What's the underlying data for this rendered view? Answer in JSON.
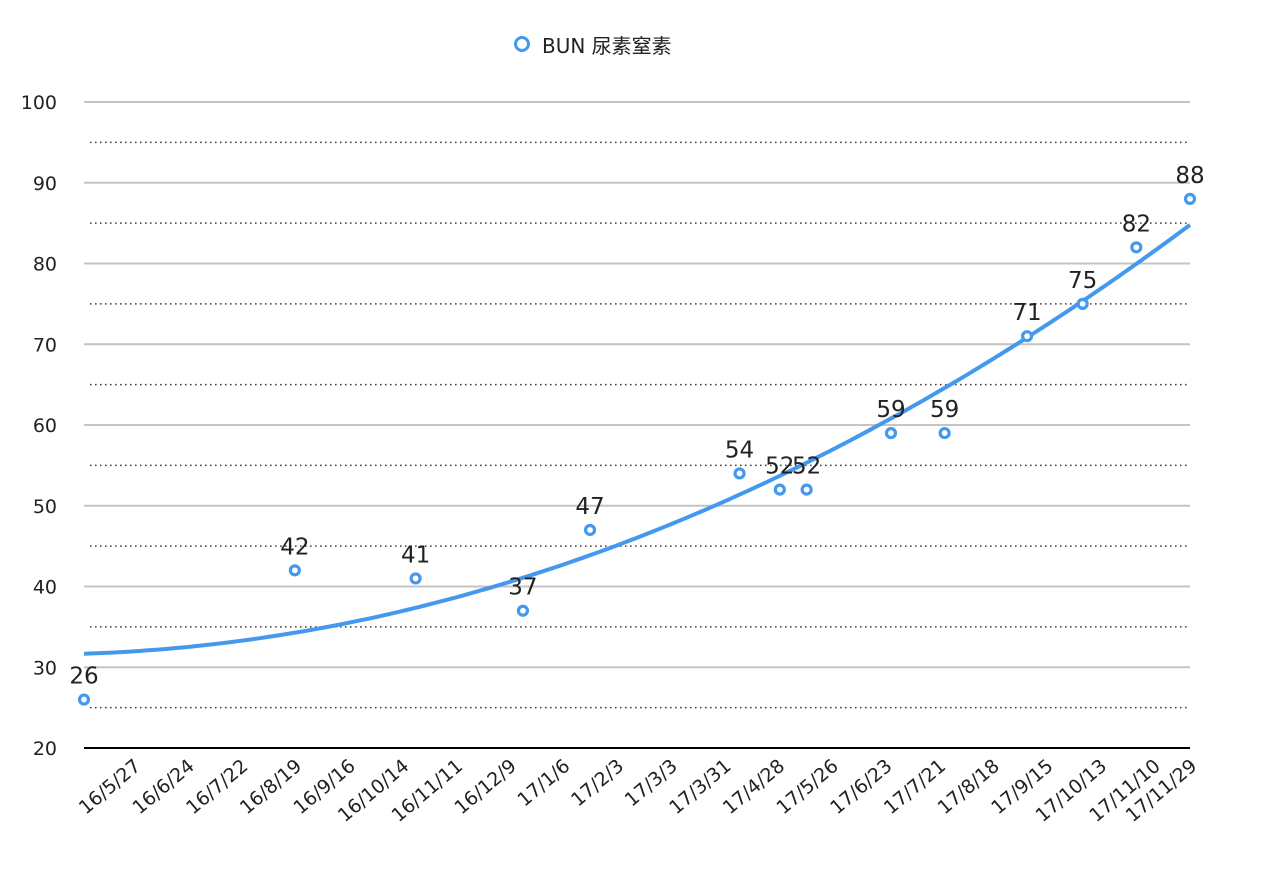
{
  "chart_data": {
    "type": "scatter",
    "legend": {
      "position": "top-center"
    },
    "series": [
      {
        "name": "BUN 尿素窒素",
        "color": "#4499ee",
        "points": [
          {
            "x": "16/5/1",
            "y": 26
          },
          {
            "x": "16/8/19",
            "y": 42
          },
          {
            "x": "16/10/21",
            "y": 41
          },
          {
            "x": "16/12/16",
            "y": 37
          },
          {
            "x": "17/1/20",
            "y": 47
          },
          {
            "x": "17/4/8",
            "y": 54
          },
          {
            "x": "17/4/29",
            "y": 52
          },
          {
            "x": "17/5/13",
            "y": 52
          },
          {
            "x": "17/6/26",
            "y": 59
          },
          {
            "x": "17/7/24",
            "y": 59
          },
          {
            "x": "17/9/5",
            "y": 71
          },
          {
            "x": "17/10/4",
            "y": 75
          },
          {
            "x": "17/11/1",
            "y": 82
          },
          {
            "x": "17/11/29",
            "y": 88
          }
        ],
        "trendline": {
          "type": "polynomial",
          "order": 2
        }
      }
    ],
    "x_ticks": [
      "16/5/27",
      "16/6/24",
      "16/7/22",
      "16/8/19",
      "16/9/16",
      "16/10/14",
      "16/11/11",
      "16/12/9",
      "17/1/6",
      "17/2/3",
      "17/3/3",
      "17/3/31",
      "17/4/28",
      "17/5/26",
      "17/6/23",
      "17/7/21",
      "17/8/18",
      "17/9/15",
      "17/10/13",
      "17/11/10",
      "17/11/29"
    ],
    "y_ticks": [
      "20",
      "30",
      "40",
      "50",
      "60",
      "70",
      "80",
      "90",
      "100"
    ],
    "ylim": [
      20,
      100
    ],
    "grid": {
      "major": true,
      "minor_dotted": true
    }
  }
}
